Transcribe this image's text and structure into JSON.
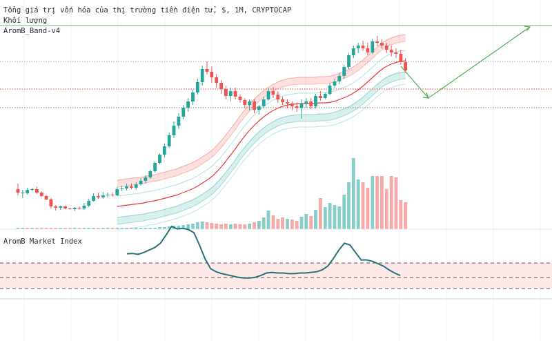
{
  "header": {
    "title": "Tổng giá trị vốn hóa của thị trường tiền điện tử, $, 1M, CRYPTOCAP",
    "volume_label": "Khối lượng",
    "band_label": "AromB_Band-v4"
  },
  "lower_pane": {
    "label": "AromB Market Index"
  },
  "colors": {
    "up": "#26a69a",
    "down": "#ef5350",
    "basis": "#e53935",
    "arrow": "#4caf50",
    "index_line": "#26707a",
    "zone_fill": "#fde8e8"
  },
  "chart_data": [
    {
      "type": "candlestick",
      "title": "Tổng giá trị vốn hóa của thị trường tiền điện tử, $, 1M, CRYPTOCAP",
      "series": [
        {
          "name": "candles",
          "values": [
            [
              58,
              66,
              49,
              53
            ],
            [
              52,
              57,
              45,
              53
            ],
            [
              52,
              60,
              50,
              57
            ],
            [
              57,
              60,
              55,
              58
            ],
            [
              58,
              62,
              51,
              53
            ],
            [
              53,
              55,
              47,
              48
            ],
            [
              48,
              50,
              42,
              43
            ],
            [
              43,
              45,
              30,
              33
            ],
            [
              33,
              35,
              27,
              31
            ],
            [
              31,
              34,
              28,
              33
            ],
            [
              33,
              34,
              29,
              30
            ],
            [
              30,
              31,
              28,
              29
            ],
            [
              29,
              32,
              26,
              31
            ],
            [
              31,
              33,
              28,
              30
            ],
            [
              30,
              38,
              28,
              34
            ],
            [
              34,
              44,
              32,
              41
            ],
            [
              41,
              52,
              40,
              48
            ],
            [
              48,
              53,
              44,
              46
            ],
            [
              46,
              54,
              44,
              49
            ],
            [
              49,
              53,
              46,
              50
            ],
            [
              50,
              53,
              47,
              49
            ],
            [
              49,
              61,
              48,
              58
            ],
            [
              58,
              63,
              55,
              59
            ],
            [
              59,
              66,
              56,
              62
            ],
            [
              62,
              66,
              58,
              60
            ],
            [
              60,
              68,
              57,
              65
            ],
            [
              65,
              74,
              63,
              70
            ],
            [
              70,
              78,
              66,
              75
            ],
            [
              75,
              86,
              73,
              84
            ],
            [
              84,
              98,
              82,
              96
            ],
            [
              96,
              110,
              94,
              108
            ],
            [
              108,
              124,
              104,
              120
            ],
            [
              120,
              140,
              118,
              136
            ],
            [
              136,
              156,
              132,
              150
            ],
            [
              150,
              168,
              145,
              163
            ],
            [
              163,
              180,
              159,
              176
            ],
            [
              176,
              190,
              170,
              185
            ],
            [
              185,
              202,
              180,
              198
            ],
            [
              198,
              218,
              195,
              213
            ],
            [
              213,
              237,
              208,
              232
            ],
            [
              232,
              243,
              224,
              228
            ],
            [
              228,
              236,
              212,
              220
            ],
            [
              220,
              225,
              205,
              212
            ],
            [
              212,
              216,
              196,
              203
            ],
            [
              203,
              208,
              188,
              193
            ],
            [
              193,
              205,
              185,
              200
            ],
            [
              200,
              205,
              188,
              192
            ],
            [
              192,
              195,
              183,
              187
            ],
            [
              187,
              190,
              175,
              180
            ],
            [
              180,
              188,
              172,
              185
            ],
            [
              185,
              188,
              168,
              173
            ],
            [
              173,
              180,
              166,
              178
            ],
            [
              178,
              192,
              175,
              188
            ],
            [
              188,
              204,
              186,
              200
            ],
            [
              200,
              206,
              190,
              195
            ],
            [
              195,
              200,
              183,
              188
            ],
            [
              188,
              192,
              180,
              184
            ],
            [
              184,
              188,
              175,
              182
            ],
            [
              182,
              185,
              172,
              178
            ],
            [
              178,
              183,
              170,
              176
            ],
            [
              176,
              188,
              160,
              182
            ],
            [
              182,
              190,
              176,
              185
            ],
            [
              185,
              190,
              174,
              178
            ],
            [
              178,
              196,
              175,
              193
            ],
            [
              193,
              200,
              186,
              190
            ],
            [
              190,
              198,
              188,
              196
            ],
            [
              196,
              212,
              194,
              208
            ],
            [
              208,
              218,
              205,
              214
            ],
            [
              214,
              226,
              210,
              222
            ],
            [
              222,
              238,
              218,
              235
            ],
            [
              235,
              255,
              232,
              252
            ],
            [
              252,
              266,
              248,
              262
            ],
            [
              262,
              270,
              255,
              266
            ],
            [
              266,
              273,
              258,
              262
            ],
            [
              262,
              270,
              252,
              256
            ],
            [
              256,
              276,
              254,
              272
            ],
            [
              272,
              280,
              265,
              270
            ],
            [
              270,
              275,
              262,
              266
            ],
            [
              266,
              270,
              255,
              260
            ],
            [
              260,
              266,
              250,
              256
            ],
            [
              256,
              262,
              248,
              254
            ],
            [
              254,
              260,
              238,
              242
            ],
            [
              242,
              248,
              226,
              230
            ]
          ]
        },
        {
          "name": "volume",
          "values": [
            [
              2,
              "up"
            ],
            [
              2,
              "up"
            ],
            [
              2,
              "down"
            ],
            [
              2,
              "up"
            ],
            [
              2,
              "down"
            ],
            [
              2,
              "down"
            ],
            [
              2,
              "down"
            ],
            [
              2,
              "down"
            ],
            [
              2,
              "down"
            ],
            [
              2,
              "up"
            ],
            [
              2,
              "down"
            ],
            [
              2,
              "down"
            ],
            [
              2,
              "up"
            ],
            [
              2,
              "down"
            ],
            [
              2,
              "up"
            ],
            [
              2,
              "up"
            ],
            [
              2,
              "up"
            ],
            [
              2,
              "down"
            ],
            [
              2,
              "up"
            ],
            [
              2,
              "up"
            ],
            [
              2,
              "down"
            ],
            [
              2,
              "up"
            ],
            [
              2,
              "up"
            ],
            [
              2,
              "up"
            ],
            [
              2,
              "down"
            ],
            [
              2,
              "up"
            ],
            [
              2,
              "up"
            ],
            [
              2,
              "up"
            ],
            [
              2,
              "up"
            ],
            [
              2,
              "up"
            ],
            [
              3,
              "up"
            ],
            [
              3,
              "up"
            ],
            [
              4,
              "up"
            ],
            [
              5,
              "up"
            ],
            [
              5,
              "up"
            ],
            [
              6,
              "up"
            ],
            [
              7,
              "up"
            ],
            [
              8,
              "up"
            ],
            [
              10,
              "up"
            ],
            [
              11,
              "up"
            ],
            [
              10,
              "down"
            ],
            [
              9,
              "down"
            ],
            [
              8,
              "down"
            ],
            [
              7,
              "down"
            ],
            [
              8,
              "down"
            ],
            [
              7,
              "up"
            ],
            [
              8,
              "down"
            ],
            [
              7,
              "down"
            ],
            [
              7,
              "down"
            ],
            [
              8,
              "up"
            ],
            [
              10,
              "down"
            ],
            [
              12,
              "up"
            ],
            [
              17,
              "up"
            ],
            [
              27,
              "up"
            ],
            [
              20,
              "down"
            ],
            [
              15,
              "down"
            ],
            [
              17,
              "down"
            ],
            [
              15,
              "up"
            ],
            [
              14,
              "down"
            ],
            [
              12,
              "down"
            ],
            [
              18,
              "up"
            ],
            [
              22,
              "up"
            ],
            [
              19,
              "down"
            ],
            [
              28,
              "up"
            ],
            [
              45,
              "down"
            ],
            [
              32,
              "up"
            ],
            [
              38,
              "up"
            ],
            [
              35,
              "up"
            ],
            [
              33,
              "up"
            ],
            [
              50,
              "up"
            ],
            [
              68,
              "up"
            ],
            [
              103,
              "up"
            ],
            [
              72,
              "up"
            ],
            [
              68,
              "down"
            ],
            [
              60,
              "down"
            ],
            [
              77,
              "up"
            ],
            [
              77,
              "down"
            ],
            [
              77,
              "down"
            ],
            [
              58,
              "down"
            ],
            [
              77,
              "down"
            ],
            [
              75,
              "down"
            ],
            [
              42,
              "down"
            ],
            [
              39,
              "down"
            ]
          ]
        },
        {
          "name": "basis",
          "values": [
            33,
            34,
            35,
            36,
            37,
            38,
            40,
            41,
            43,
            45,
            47,
            49,
            52,
            55,
            58,
            62,
            67,
            72,
            78,
            86,
            95,
            105,
            115,
            126,
            136,
            145,
            153,
            160,
            166,
            171,
            175,
            178,
            180,
            181,
            182,
            182,
            182,
            182,
            183,
            183,
            184,
            186,
            189,
            192,
            196,
            201,
            207,
            214,
            221,
            228,
            234,
            238,
            241,
            243,
            244
          ]
        },
        {
          "name": "arrow",
          "values": [
            [
              83,
              236
            ],
            [
              90,
              198
            ],
            [
              107,
              312
            ]
          ]
        }
      ],
      "ylim": [
        0,
        330
      ],
      "grid": true
    },
    {
      "type": "line",
      "title": "AromB Market Index",
      "series": [
        {
          "name": "index",
          "values": [
            56,
            56.4,
            55,
            58,
            62,
            66,
            73,
            86,
            100,
            96,
            97,
            95,
            90,
            70,
            48,
            32,
            27,
            24,
            22,
            20,
            18,
            17,
            17,
            18,
            21,
            25,
            26,
            25,
            25,
            24,
            24,
            25,
            25,
            26,
            27,
            30,
            36,
            48,
            62,
            73,
            70,
            58,
            46,
            46,
            44,
            40,
            36,
            30,
            25,
            21
          ]
        }
      ],
      "ylim": [
        0,
        100
      ]
    }
  ]
}
